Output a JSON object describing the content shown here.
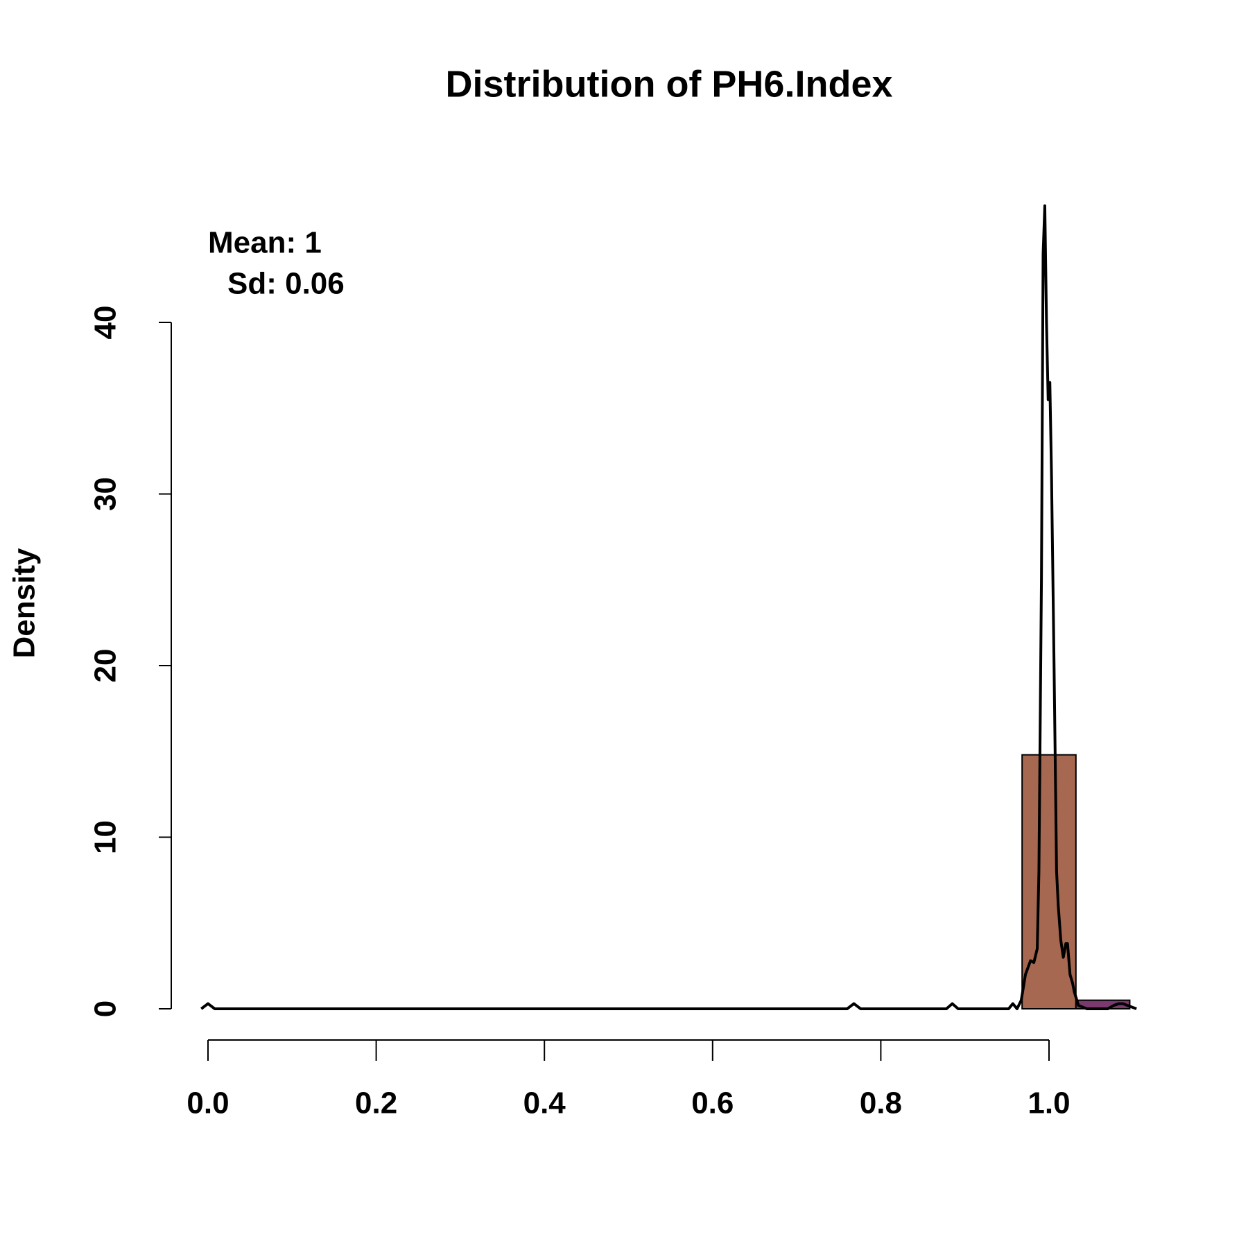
{
  "chart_data": {
    "type": "histogram",
    "title": "Distribution of PH6.Index",
    "ylabel": "Density",
    "annotations": [
      "Mean: 1",
      "Sd: 0.06"
    ],
    "bins": [
      0.968,
      1.032,
      1.096
    ],
    "values": [
      14.8,
      0.5
    ],
    "colors": [
      "#a66850",
      "#7a3a6e"
    ],
    "density": {
      "color": "#000000",
      "x": [
        -0.008,
        0,
        0.008,
        0.76,
        0.768,
        0.776,
        0.878,
        0.885,
        0.892,
        0.952,
        0.957,
        0.962,
        0.967,
        0.972,
        0.978,
        0.982,
        0.986,
        0.988,
        0.991,
        0.993,
        0.995,
        0.997,
        0.999,
        1.001,
        1.003,
        1.006,
        1.009,
        1.011,
        1.014,
        1.017,
        1.02,
        1.022,
        1.025,
        1.028,
        1.03,
        1.035,
        1.045,
        1.07,
        1.077,
        1.083,
        1.088,
        1.093,
        1.104
      ],
      "y": [
        0,
        0.3,
        0,
        0,
        0.3,
        0,
        0,
        0.3,
        0,
        0,
        0.3,
        0,
        0.5,
        2,
        2.8,
        2.7,
        3.5,
        8,
        25,
        44,
        46.8,
        40,
        35.5,
        36.5,
        31,
        20,
        8,
        6,
        4,
        3,
        3.8,
        3.8,
        2,
        1.5,
        1,
        0.2,
        0,
        0,
        0.2,
        0.3,
        0.3,
        0.2,
        0
      ]
    },
    "xlim": [
      -0.02,
      1.12
    ],
    "ylim": [
      0,
      47.5
    ],
    "xticks": [
      {
        "value": 0,
        "label": "0.0"
      },
      {
        "value": 0.2,
        "label": "0.2"
      },
      {
        "value": 0.4,
        "label": "0.4"
      },
      {
        "value": 0.6,
        "label": "0.6"
      },
      {
        "value": 0.8,
        "label": "0.8"
      },
      {
        "value": 1,
        "label": "1.0"
      }
    ],
    "yticks": [
      0,
      10,
      20,
      30,
      40
    ]
  }
}
